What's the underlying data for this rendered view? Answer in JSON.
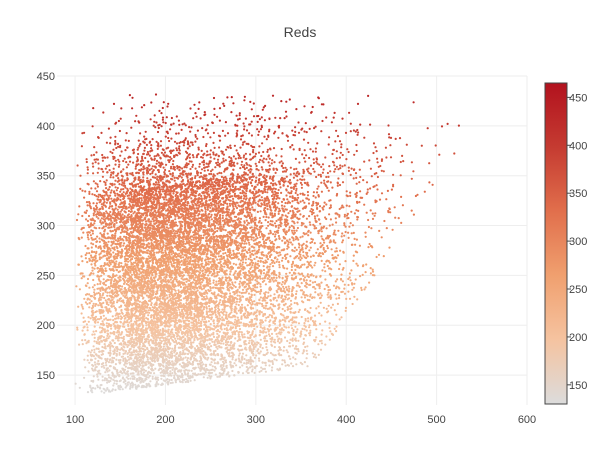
{
  "chart_data": {
    "type": "scatter",
    "title": "Reds",
    "xlabel": "",
    "ylabel": "",
    "xlim": [
      80,
      600
    ],
    "ylim": [
      120,
      450
    ],
    "x_ticks": [
      100,
      200,
      300,
      400,
      500,
      600
    ],
    "y_ticks": [
      150,
      200,
      250,
      300,
      350,
      400,
      450
    ],
    "grid": true,
    "colorscale": {
      "name": "Reds",
      "stops": [
        "#dcdcdc",
        "#f5c3a0",
        "#f0a06f",
        "#e16f4c",
        "#c53b31",
        "#b2121e"
      ],
      "range": [
        130,
        465
      ],
      "ticks": [
        150,
        200,
        250,
        300,
        350,
        400,
        450
      ]
    },
    "point_cloud": {
      "approx_points": 12000,
      "x_range": [
        100,
        575
      ],
      "y_range": [
        128,
        432
      ],
      "color_by": "y",
      "summary": "Dense cloud: points spread from x≈100 to x≈575 and y≈128 to y≈432; the right edge narrows toward higher x, with the densest region around x 150–350. Color follows y (light grey at low y, dark red at high y)."
    }
  }
}
